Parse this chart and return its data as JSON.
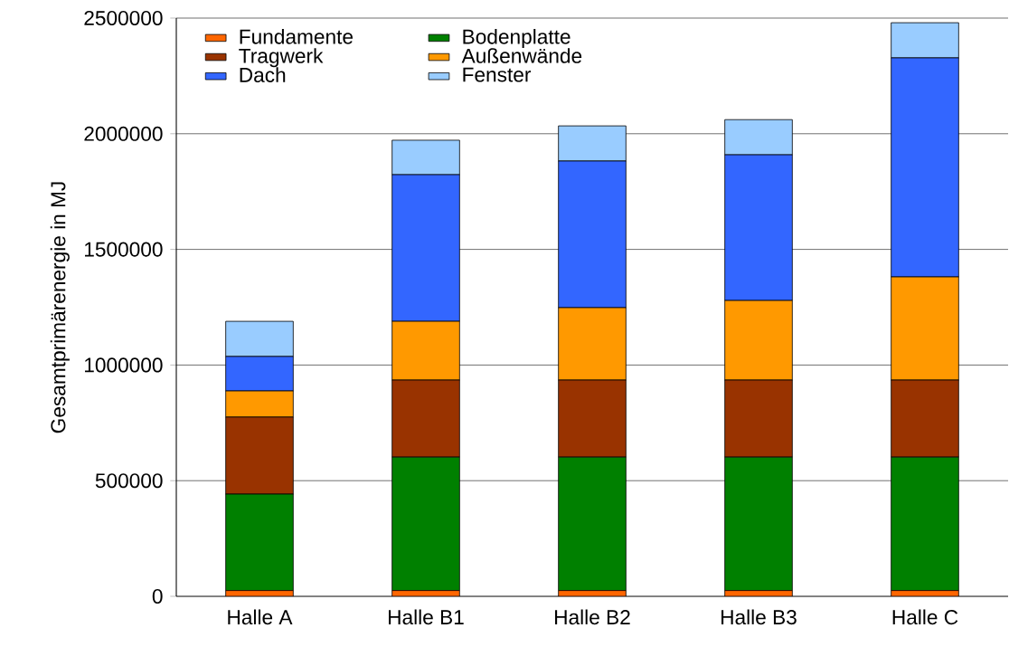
{
  "chart_data": {
    "type": "bar",
    "stacked": true,
    "ylabel": "Gesamtprimärenergie in MJ",
    "categories": [
      "Halle A",
      "Halle B1",
      "Halle B2",
      "Halle B3",
      "Halle C"
    ],
    "series": [
      {
        "name": "Fundamente",
        "color": "#ff6600",
        "values": [
          25000,
          25000,
          25000,
          25000,
          25000
        ]
      },
      {
        "name": "Bodenplatte",
        "color": "#008000",
        "values": [
          417000,
          577000,
          577000,
          577000,
          577000
        ]
      },
      {
        "name": "Tragwerk",
        "color": "#993300",
        "values": [
          333000,
          333000,
          333000,
          333000,
          333000
        ]
      },
      {
        "name": "Außenwände",
        "color": "#ff9900",
        "values": [
          113000,
          254000,
          313000,
          344000,
          446000
        ]
      },
      {
        "name": "Dach",
        "color": "#3366ff",
        "values": [
          149000,
          634000,
          634000,
          630000,
          947000
        ]
      },
      {
        "name": "Fenster",
        "color": "#99ccff",
        "values": [
          152000,
          149000,
          152000,
          152000,
          152000
        ]
      }
    ],
    "ylim": [
      0,
      2500000
    ],
    "yticks": [
      0,
      500000,
      1000000,
      1500000,
      2000000,
      2500000
    ],
    "grid": "y",
    "legend": "top left"
  }
}
